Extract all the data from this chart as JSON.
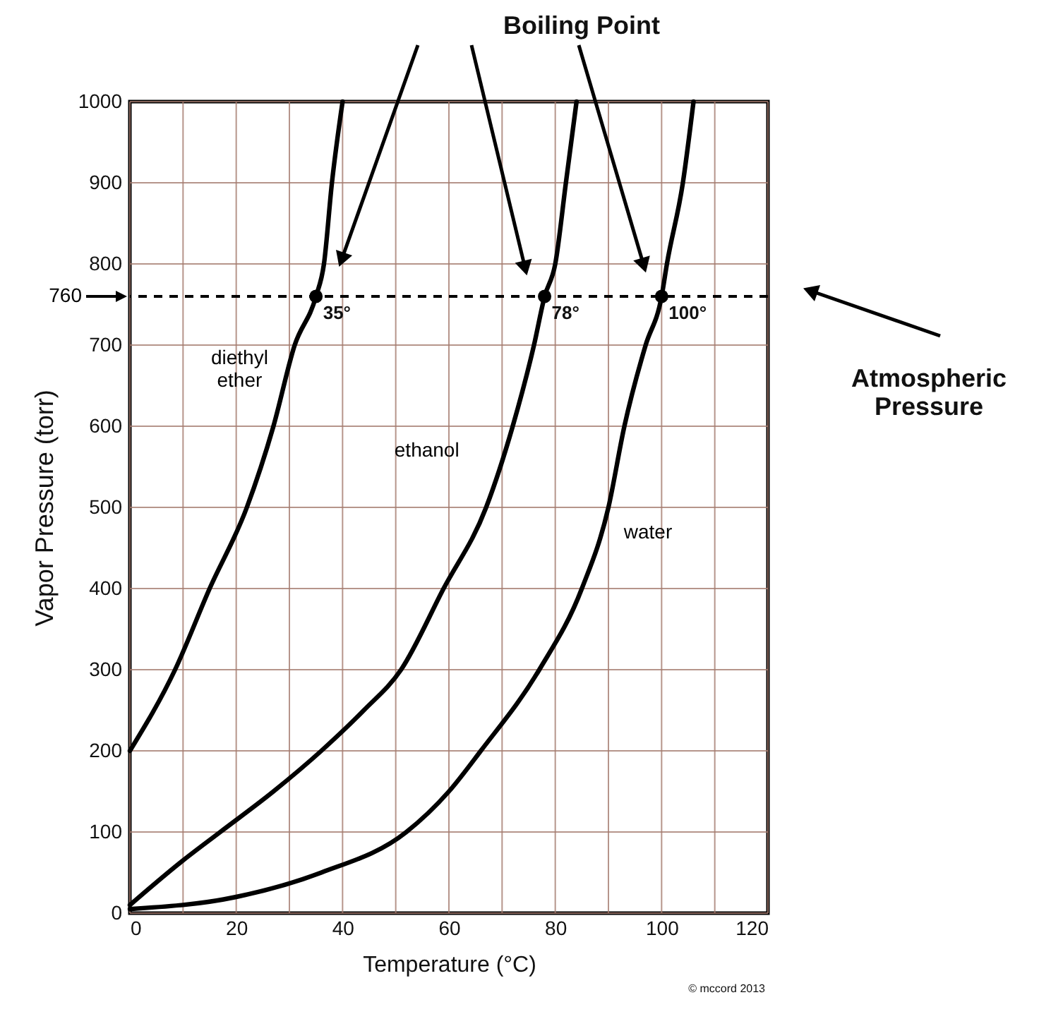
{
  "chart_data": {
    "type": "line",
    "title": "Boiling Point",
    "xlabel": "Temperature (°C)",
    "ylabel": "Vapor Pressure (torr)",
    "xlim": [
      0,
      120
    ],
    "ylim": [
      0,
      1000
    ],
    "xticks": [
      0,
      {
        "value": 10,
        "label": null
      },
      20,
      {
        "value": 30,
        "label": null
      },
      40,
      {
        "value": 50,
        "label": null
      },
      60,
      {
        "value": 70,
        "label": null
      },
      80,
      {
        "value": 90,
        "label": null
      },
      100,
      {
        "value": 110,
        "label": null
      },
      120
    ],
    "yticks": [
      0,
      100,
      200,
      300,
      400,
      500,
      600,
      700,
      800,
      900,
      1000
    ],
    "grid": true,
    "line_style": "solid",
    "series": [
      {
        "name": "diethyl ether",
        "color": "#000000",
        "x": [
          0,
          8.5,
          15,
          22,
          27,
          31,
          35,
          36.5,
          38,
          40
        ],
        "values": [
          200,
          300,
          400,
          500,
          600,
          700,
          760,
          800,
          900,
          1000
        ]
      },
      {
        "name": "ethanol",
        "color": "#000000",
        "x": [
          0,
          10,
          17,
          27,
          36,
          44,
          51,
          59,
          67,
          72,
          76,
          78,
          80,
          82,
          84
        ],
        "values": [
          10,
          65,
          100,
          150,
          200,
          250,
          300,
          400,
          500,
          600,
          700,
          760,
          800,
          900,
          1000
        ]
      },
      {
        "name": "water",
        "color": "#000000",
        "x": [
          0,
          20,
          36,
          52,
          60,
          66,
          77,
          85,
          90,
          93,
          97,
          100,
          101,
          104,
          106
        ],
        "values": [
          5,
          20,
          50,
          100,
          150,
          200,
          300,
          400,
          500,
          600,
          700,
          760,
          800,
          900,
          1000
        ]
      },
      {
        "type": "scatter",
        "color": "#000000",
        "marker": "circle",
        "x": [
          35,
          78,
          100
        ],
        "values": [
          760,
          760,
          760
        ]
      }
    ],
    "ref_lines": [
      {
        "axis": "y",
        "value": 760,
        "label": "760",
        "line_style": "dashed",
        "color": "#000000"
      }
    ],
    "annotations": [
      {
        "text": "35°",
        "x": 35,
        "y": 760
      },
      {
        "text": "78°",
        "x": 78,
        "y": 760
      },
      {
        "text": "100°",
        "x": 100,
        "y": 760
      },
      "Atmospheric Pressure",
      "© mccord 2013"
    ]
  }
}
